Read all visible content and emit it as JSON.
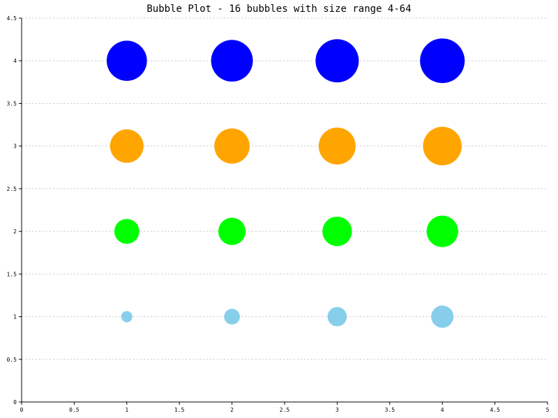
{
  "chart_data": {
    "type": "scatter",
    "title": "Bubble Plot - 16 bubbles with size range 4-64",
    "xlabel": "",
    "ylabel": "",
    "xlim": [
      0,
      5
    ],
    "ylim": [
      0,
      4.5
    ],
    "x_ticks": [
      "0",
      "0.5",
      "1",
      "1.5",
      "2",
      "2.5",
      "3",
      "3.5",
      "4",
      "4.5",
      "5"
    ],
    "y_ticks": [
      "0",
      "0.5",
      "1",
      "1.5",
      "2",
      "2.5",
      "3",
      "3.5",
      "4",
      "4.5"
    ],
    "grid": "horizontal dashed",
    "legend": "none",
    "size_range": [
      4,
      64
    ],
    "series": [
      {
        "color": "#87CEEB",
        "points": [
          {
            "x": 1,
            "y": 1,
            "size": 4
          },
          {
            "x": 2,
            "y": 1,
            "size": 8
          },
          {
            "x": 3,
            "y": 1,
            "size": 12
          },
          {
            "x": 4,
            "y": 1,
            "size": 16
          }
        ]
      },
      {
        "color": "#00FF00",
        "points": [
          {
            "x": 1,
            "y": 2,
            "size": 20
          },
          {
            "x": 2,
            "y": 2,
            "size": 24
          },
          {
            "x": 3,
            "y": 2,
            "size": 28
          },
          {
            "x": 4,
            "y": 2,
            "size": 32
          }
        ]
      },
      {
        "color": "#FFA500",
        "points": [
          {
            "x": 1,
            "y": 3,
            "size": 36
          },
          {
            "x": 2,
            "y": 3,
            "size": 40
          },
          {
            "x": 3,
            "y": 3,
            "size": 44
          },
          {
            "x": 4,
            "y": 3,
            "size": 48
          }
        ]
      },
      {
        "color": "#0000FF",
        "points": [
          {
            "x": 1,
            "y": 4,
            "size": 52
          },
          {
            "x": 2,
            "y": 4,
            "size": 56
          },
          {
            "x": 3,
            "y": 4,
            "size": 60
          },
          {
            "x": 4,
            "y": 4,
            "size": 64
          }
        ]
      }
    ]
  }
}
